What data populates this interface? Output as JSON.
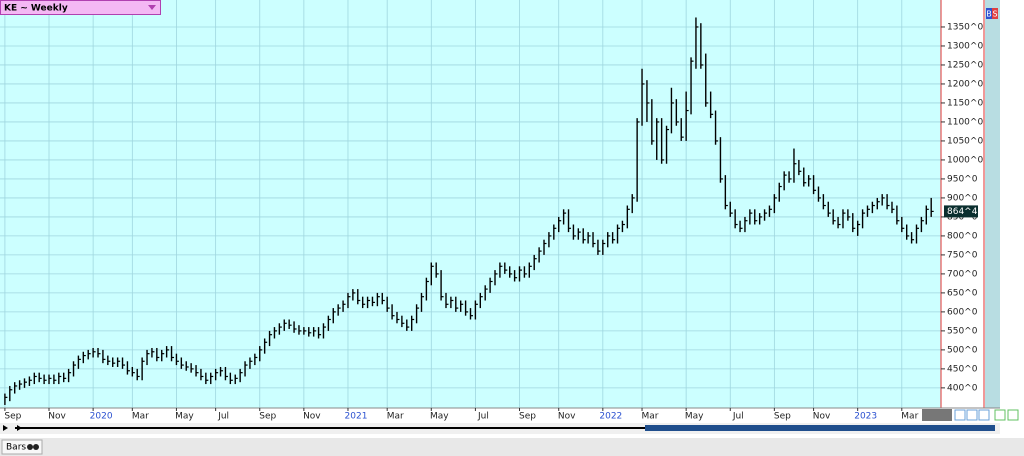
{
  "chart_data": {
    "type": "ohlc",
    "title": "KE ~ Weekly",
    "xlim": [
      -1,
      191
    ],
    "xticks": [
      {
        "value": 0,
        "label": "Sep"
      },
      {
        "value": 9,
        "label": "Nov"
      },
      {
        "value": 18,
        "label": "2020"
      },
      {
        "value": 26,
        "label": "Mar"
      },
      {
        "value": 35,
        "label": "May"
      },
      {
        "value": 43,
        "label": "Jul"
      },
      {
        "value": 52,
        "label": "Sep"
      },
      {
        "value": 61,
        "label": "Nov"
      },
      {
        "value": 70,
        "label": "2021"
      },
      {
        "value": 78,
        "label": "Mar"
      },
      {
        "value": 87,
        "label": "May"
      },
      {
        "value": 96,
        "label": "Jul"
      },
      {
        "value": 105,
        "label": "Sep"
      },
      {
        "value": 113,
        "label": "Nov"
      },
      {
        "value": 122,
        "label": "2022"
      },
      {
        "value": 130,
        "label": "Mar"
      },
      {
        "value": 139,
        "label": "May"
      },
      {
        "value": 148,
        "label": "Jul"
      },
      {
        "value": 157,
        "label": "Sep"
      },
      {
        "value": 165,
        "label": "Nov"
      },
      {
        "value": 174,
        "label": "2023"
      },
      {
        "value": 183,
        "label": "Mar"
      }
    ],
    "ylim": [
      347,
      1421
    ],
    "yticks": [
      {
        "value": 400,
        "label": "400^0"
      },
      {
        "value": 450,
        "label": "450^0"
      },
      {
        "value": 500,
        "label": "500^0"
      },
      {
        "value": 550,
        "label": "550^0"
      },
      {
        "value": 600,
        "label": "600^0"
      },
      {
        "value": 650,
        "label": "650^0"
      },
      {
        "value": 700,
        "label": "700^0"
      },
      {
        "value": 750,
        "label": "750^0"
      },
      {
        "value": 800,
        "label": "800^0"
      },
      {
        "value": 850,
        "label": "850^0"
      },
      {
        "value": 900,
        "label": "900^0"
      },
      {
        "value": 950,
        "label": "950^0"
      },
      {
        "value": 1000,
        "label": "1000^0"
      },
      {
        "value": 1050,
        "label": "1050^0"
      },
      {
        "value": 1100,
        "label": "1100^0"
      },
      {
        "value": 1150,
        "label": "1150^0"
      },
      {
        "value": 1200,
        "label": "1200^0"
      },
      {
        "value": 1250,
        "label": "1250^0"
      },
      {
        "value": 1300,
        "label": "1300^0"
      },
      {
        "value": 1350,
        "label": "1350^0"
      }
    ],
    "grid": true,
    "color": "#000000",
    "high": [
      385,
      405,
      415,
      420,
      425,
      430,
      440,
      440,
      435,
      435,
      435,
      440,
      440,
      450,
      470,
      485,
      495,
      500,
      505,
      505,
      500,
      485,
      480,
      480,
      480,
      470,
      455,
      450,
      480,
      500,
      505,
      505,
      500,
      510,
      510,
      490,
      480,
      470,
      465,
      460,
      450,
      440,
      440,
      450,
      455,
      455,
      440,
      435,
      450,
      470,
      480,
      490,
      510,
      530,
      550,
      560,
      570,
      580,
      580,
      575,
      565,
      560,
      560,
      560,
      560,
      570,
      590,
      610,
      620,
      630,
      650,
      660,
      660,
      640,
      640,
      640,
      650,
      650,
      640,
      620,
      600,
      590,
      580,
      590,
      620,
      650,
      690,
      730,
      730,
      710,
      650,
      640,
      640,
      630,
      630,
      610,
      630,
      650,
      670,
      690,
      710,
      730,
      730,
      720,
      710,
      720,
      720,
      730,
      750,
      770,
      790,
      810,
      830,
      850,
      870,
      870,
      830,
      820,
      820,
      810,
      810,
      790,
      790,
      810,
      810,
      830,
      840,
      880,
      910,
      1110,
      1240,
      1210,
      1160,
      1110,
      1110,
      1090,
      1190,
      1160,
      1110,
      1180,
      1270,
      1375,
      1360,
      1280,
      1180,
      1130,
      1060,
      960,
      890,
      870,
      840,
      850,
      870,
      870,
      860,
      870,
      880,
      910,
      940,
      970,
      970,
      1030,
      1000,
      980,
      960,
      960,
      930,
      910,
      890,
      870,
      850,
      870,
      870,
      860,
      840,
      870,
      880,
      890,
      900,
      910,
      910,
      890,
      880,
      850,
      830,
      810,
      830,
      850,
      880,
      900
    ],
    "low": [
      355,
      365,
      385,
      395,
      400,
      405,
      410,
      415,
      410,
      410,
      410,
      410,
      415,
      415,
      430,
      450,
      465,
      475,
      480,
      480,
      465,
      460,
      455,
      455,
      450,
      435,
      430,
      420,
      420,
      460,
      480,
      470,
      470,
      480,
      470,
      460,
      450,
      445,
      440,
      430,
      420,
      410,
      410,
      420,
      430,
      420,
      410,
      410,
      415,
      430,
      450,
      460,
      470,
      490,
      510,
      530,
      540,
      550,
      555,
      545,
      540,
      540,
      535,
      535,
      530,
      530,
      550,
      570,
      590,
      600,
      610,
      630,
      620,
      610,
      610,
      615,
      615,
      620,
      600,
      580,
      570,
      560,
      550,
      550,
      570,
      600,
      630,
      670,
      690,
      630,
      610,
      610,
      600,
      600,
      590,
      580,
      580,
      610,
      630,
      650,
      670,
      690,
      700,
      690,
      680,
      680,
      690,
      690,
      710,
      730,
      750,
      770,
      790,
      810,
      830,
      810,
      790,
      790,
      780,
      780,
      770,
      750,
      750,
      770,
      780,
      780,
      810,
      820,
      860,
      890,
      1090,
      1100,
      1040,
      1000,
      990,
      990,
      1070,
      1090,
      1050,
      1050,
      1120,
      1240,
      1240,
      1140,
      1110,
      1040,
      940,
      870,
      850,
      820,
      810,
      810,
      830,
      830,
      830,
      840,
      850,
      860,
      890,
      920,
      940,
      940,
      960,
      930,
      930,
      910,
      890,
      870,
      850,
      830,
      820,
      820,
      840,
      810,
      800,
      820,
      850,
      860,
      870,
      880,
      870,
      860,
      830,
      810,
      790,
      780,
      780,
      810,
      830,
      850
    ],
    "close": [
      375,
      395,
      405,
      410,
      415,
      420,
      430,
      425,
      420,
      425,
      420,
      430,
      425,
      440,
      460,
      475,
      485,
      490,
      495,
      490,
      475,
      470,
      465,
      470,
      460,
      445,
      440,
      430,
      470,
      490,
      495,
      480,
      490,
      500,
      480,
      470,
      460,
      455,
      450,
      440,
      430,
      420,
      430,
      440,
      445,
      430,
      420,
      425,
      440,
      460,
      470,
      480,
      500,
      520,
      540,
      550,
      560,
      570,
      565,
      555,
      550,
      550,
      545,
      550,
      540,
      560,
      580,
      600,
      610,
      620,
      640,
      650,
      630,
      620,
      630,
      625,
      640,
      630,
      610,
      590,
      580,
      570,
      560,
      580,
      610,
      640,
      680,
      720,
      700,
      640,
      620,
      630,
      610,
      620,
      600,
      590,
      620,
      640,
      660,
      680,
      700,
      720,
      710,
      700,
      690,
      710,
      700,
      720,
      740,
      760,
      780,
      800,
      820,
      840,
      860,
      820,
      800,
      810,
      790,
      800,
      780,
      760,
      780,
      800,
      790,
      820,
      830,
      870,
      900,
      1100,
      1200,
      1150,
      1050,
      1100,
      1000,
      1080,
      1150,
      1100,
      1060,
      1130,
      1260,
      1350,
      1250,
      1150,
      1120,
      1050,
      950,
      880,
      860,
      830,
      820,
      840,
      860,
      840,
      850,
      860,
      870,
      900,
      930,
      960,
      950,
      990,
      970,
      940,
      950,
      920,
      900,
      880,
      860,
      840,
      830,
      860,
      850,
      820,
      830,
      860,
      870,
      880,
      890,
      900,
      880,
      870,
      840,
      820,
      800,
      790,
      820,
      840,
      870,
      864.5
    ],
    "last_price_label": "864^4"
  },
  "toolbar": {
    "mode": "Bars",
    "buttons": [
      "B",
      "S"
    ]
  }
}
